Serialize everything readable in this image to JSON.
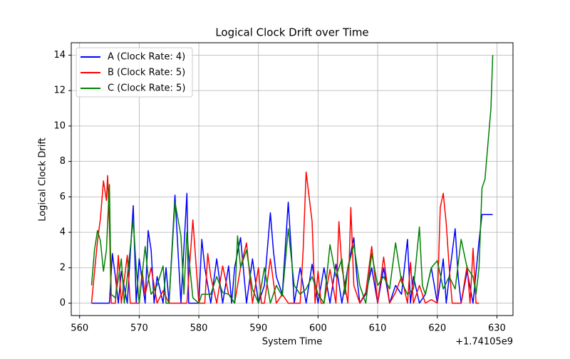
{
  "chart_data": {
    "type": "line",
    "title": "Logical Clock Drift over Time",
    "x_label": "System Time",
    "y_label": "Logical Clock Drift",
    "x_offset_label": "+1.74105e9",
    "xlim": [
      558.6,
      632.7
    ],
    "xticks": [
      560,
      570,
      580,
      590,
      600,
      610,
      620,
      630
    ],
    "ylim": [
      -0.7,
      14.7
    ],
    "yticks": [
      0,
      2,
      4,
      6,
      8,
      10,
      12,
      14
    ],
    "grid": true,
    "legend": "upper-left",
    "series": [
      {
        "name": "A (Clock Rate: 4)",
        "color": "#0000ff",
        "x": [
          562,
          563,
          564,
          565,
          565.5,
          566,
          566.5,
          567,
          568,
          569,
          569.5,
          570,
          571,
          571.5,
          572,
          572.5,
          573,
          574,
          574.5,
          575,
          576,
          576.5,
          577,
          578,
          578.3,
          579,
          580,
          580.5,
          581,
          582,
          583,
          584,
          585,
          585.5,
          586,
          587,
          588,
          589,
          590,
          591,
          592,
          592.5,
          593,
          594,
          595,
          595.5,
          596,
          597,
          598,
          599,
          600,
          601,
          602,
          603,
          604,
          605,
          606,
          606.5,
          607,
          608,
          609,
          610,
          611,
          612,
          613,
          614,
          615,
          615.5,
          616,
          617,
          618,
          619,
          620,
          621,
          621.5,
          622,
          623,
          623.5,
          624,
          625,
          626,
          627,
          627.5,
          628,
          629,
          629.3
        ],
        "values": [
          0,
          0,
          0,
          0,
          2.8,
          1.5,
          0,
          1.8,
          0,
          5.5,
          0,
          2.5,
          0,
          4.1,
          3,
          0,
          1.5,
          0,
          2,
          0,
          6.1,
          3,
          0,
          6.2,
          0,
          0,
          0,
          3.6,
          2,
          0,
          2.5,
          0,
          2.1,
          0,
          2,
          3.7,
          0,
          2.5,
          0,
          1,
          5.1,
          3,
          1.5,
          0.5,
          5.7,
          3,
          0,
          2,
          0,
          2.2,
          0,
          2,
          0,
          2.2,
          0,
          2,
          3.7,
          1.5,
          0,
          0.5,
          2,
          0,
          2,
          0,
          1,
          0.5,
          3.6,
          0,
          1.5,
          0,
          0.5,
          2,
          0,
          2.5,
          0,
          1.5,
          4.2,
          1.5,
          0,
          1.8,
          0,
          3.5,
          5,
          5,
          5,
          5
        ]
      },
      {
        "name": "B (Clock Rate: 5)",
        "color": "#ff0000",
        "x": [
          562,
          563,
          563.5,
          564,
          564.5,
          564.7,
          565,
          565.3,
          566,
          566.5,
          567,
          568,
          568.5,
          569,
          570,
          570.5,
          571,
          572,
          573,
          574,
          575,
          576,
          577,
          578,
          579,
          580,
          581,
          581.5,
          582,
          583,
          584,
          585,
          586,
          587,
          588,
          589,
          590,
          590.5,
          591,
          592,
          593,
          594,
          595,
          596,
          597,
          597.5,
          598,
          598.5,
          599,
          599.5,
          600,
          600.5,
          601,
          602,
          603,
          603.5,
          604,
          605,
          605.5,
          606,
          607,
          608,
          609,
          610,
          611,
          612,
          613,
          614,
          615,
          615.5,
          616,
          617,
          618,
          619,
          620,
          620.5,
          621,
          621.5,
          622,
          622.5,
          623,
          624,
          625,
          625.5,
          626,
          626.5,
          627
        ],
        "values": [
          0,
          3.5,
          4.8,
          6.9,
          5.8,
          7.2,
          4.5,
          0,
          0,
          2.7,
          0,
          2.7,
          0,
          0,
          0,
          1.8,
          0.5,
          2,
          0,
          0.7,
          0,
          0,
          0,
          0,
          4.7,
          0,
          0,
          2.8,
          1.5,
          0,
          2.1,
          0.5,
          0,
          2,
          3.4,
          0,
          2,
          0,
          0,
          2.5,
          0,
          0.5,
          0,
          0,
          0,
          3,
          7.4,
          6,
          4.6,
          0,
          1.8,
          0,
          0,
          1.9,
          0,
          4.6,
          2,
          0,
          5.4,
          1,
          0,
          0.6,
          3.2,
          0,
          2.6,
          0,
          0.6,
          1.5,
          0,
          2.3,
          0,
          1,
          0,
          0.2,
          0,
          5.4,
          6.2,
          4.5,
          2,
          0,
          0,
          0,
          2.1,
          0,
          3.1,
          0,
          0
        ]
      },
      {
        "name": "C (Clock Rate: 5)",
        "color": "#008000",
        "x": [
          562,
          562.5,
          563,
          563.5,
          564,
          564.5,
          565,
          565.3,
          566,
          567,
          567.5,
          568,
          569,
          569.5,
          570,
          571,
          571.5,
          572,
          573,
          574,
          574.5,
          575,
          576,
          577,
          577.5,
          578,
          578.5,
          579,
          580,
          580.5,
          581,
          582,
          583,
          584,
          585,
          586,
          586.5,
          587,
          588,
          589,
          590,
          591,
          592,
          593,
          594,
          595,
          596,
          597,
          598,
          599,
          600,
          601,
          602,
          603,
          604,
          604.5,
          605,
          606,
          607,
          608,
          609,
          610,
          611,
          612,
          613,
          614,
          615,
          616,
          617,
          617.5,
          618,
          619,
          620,
          621,
          622,
          623,
          624,
          625,
          626,
          626.5,
          627,
          627.5,
          628,
          629,
          629.3
        ],
        "values": [
          1,
          3,
          4.1,
          3.5,
          1.8,
          3,
          6.7,
          0.5,
          0.3,
          2.5,
          0,
          1.5,
          4.7,
          2,
          0,
          3.2,
          1.5,
          0.5,
          1,
          2.1,
          0,
          0,
          5.7,
          3.8,
          0.5,
          4,
          2,
          0.3,
          0,
          0.5,
          0.5,
          0.5,
          1.5,
          0.6,
          0.5,
          0,
          3.8,
          2,
          3,
          0.8,
          0,
          2,
          0,
          1,
          0.4,
          4.2,
          1,
          0.5,
          0.8,
          1.5,
          0.5,
          0,
          3.3,
          1.5,
          2.5,
          0.5,
          2,
          3.3,
          1,
          0,
          2.8,
          1,
          1.5,
          0.8,
          3.4,
          1.2,
          0.5,
          0.8,
          4.3,
          1,
          0.5,
          2,
          2.4,
          0.8,
          1.5,
          0.8,
          3.6,
          2,
          1.5,
          0.5,
          2,
          6.5,
          7,
          11,
          14
        ]
      }
    ]
  }
}
